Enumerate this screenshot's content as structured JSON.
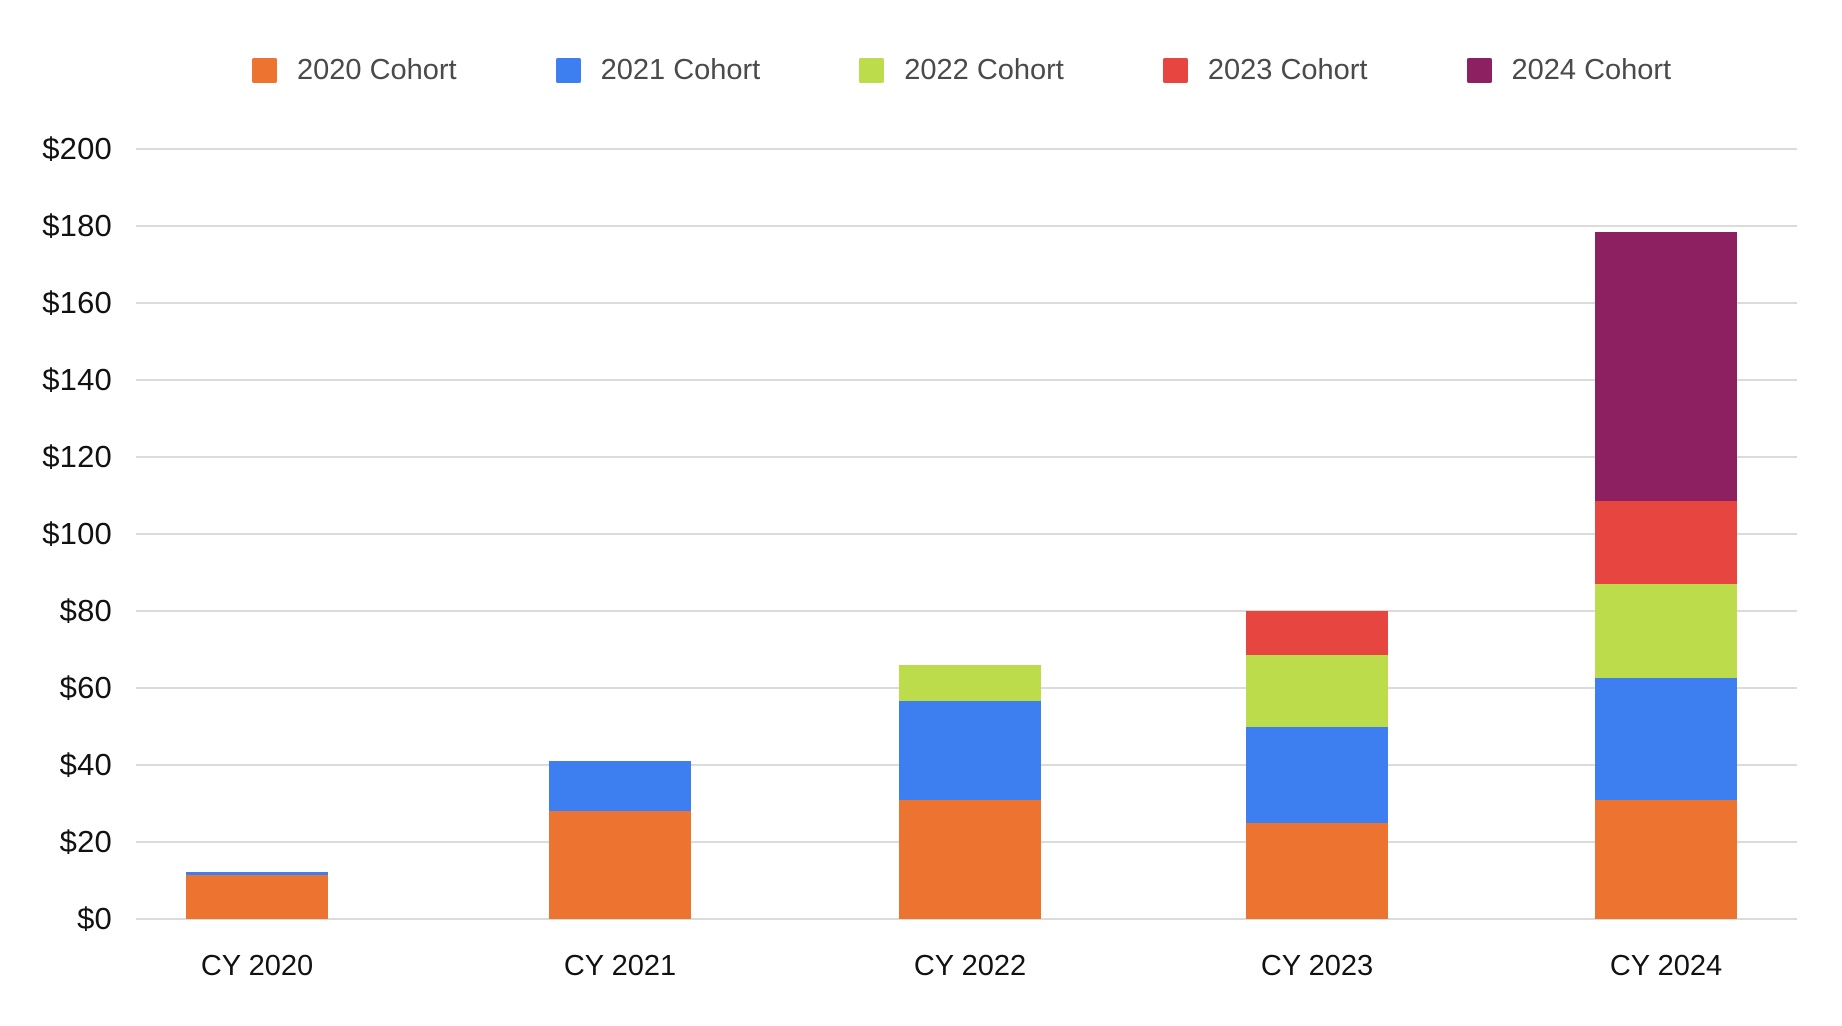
{
  "legend": {
    "items": [
      {
        "label": "2020 Cohort",
        "color": "#ED7330"
      },
      {
        "label": "2021 Cohort",
        "color": "#3D7EF0"
      },
      {
        "label": "2022 Cohort",
        "color": "#BCDC4C"
      },
      {
        "label": "2023 Cohort",
        "color": "#E74540"
      },
      {
        "label": "2024 Cohort",
        "color": "#8C2061"
      }
    ]
  },
  "y_axis": {
    "ticks": [
      {
        "label": "$200",
        "value": 200
      },
      {
        "label": "$180",
        "value": 180
      },
      {
        "label": "$160",
        "value": 160
      },
      {
        "label": "$140",
        "value": 140
      },
      {
        "label": "$120",
        "value": 120
      },
      {
        "label": "$100",
        "value": 100
      },
      {
        "label": "$80",
        "value": 80
      },
      {
        "label": "$60",
        "value": 60
      },
      {
        "label": "$40",
        "value": 40
      },
      {
        "label": "$20",
        "value": 20
      },
      {
        "label": "$0",
        "value": 0
      }
    ]
  },
  "x_axis": {
    "labels": [
      "CY 2020",
      "CY 2021",
      "CY 2022",
      "CY 2023",
      "CY 2024"
    ]
  },
  "chart_data": {
    "type": "bar",
    "stacked": true,
    "title": "",
    "xlabel": "",
    "ylabel": "",
    "value_unit": "$",
    "categories": [
      "CY 2020",
      "CY 2021",
      "CY 2022",
      "CY 2023",
      "CY 2024"
    ],
    "series": [
      {
        "name": "2020 Cohort",
        "color": "#ED7330",
        "values": [
          11.5,
          28,
          31,
          25,
          31
        ]
      },
      {
        "name": "2021 Cohort",
        "color": "#3D7EF0",
        "values": [
          0.7,
          13,
          25.5,
          25,
          31.5
        ]
      },
      {
        "name": "2022 Cohort",
        "color": "#BCDC4C",
        "values": [
          0,
          0,
          9.5,
          18.5,
          24.5
        ]
      },
      {
        "name": "2023 Cohort",
        "color": "#E74540",
        "values": [
          0,
          0,
          0,
          11.5,
          21.5
        ]
      },
      {
        "name": "2024 Cohort",
        "color": "#8C2061",
        "values": [
          0,
          0,
          0,
          0,
          70
        ]
      }
    ],
    "stack_totals": [
      12.2,
      41,
      66,
      80,
      178.5
    ],
    "ylim": [
      0,
      200
    ],
    "y_tick_step": 20,
    "grid": true,
    "legend_position": "top"
  },
  "colors": {
    "background": "#FFFFFF",
    "gridline": "#DBDBDB",
    "axis_text": "#111111",
    "legend_text": "#4A4A4A"
  }
}
